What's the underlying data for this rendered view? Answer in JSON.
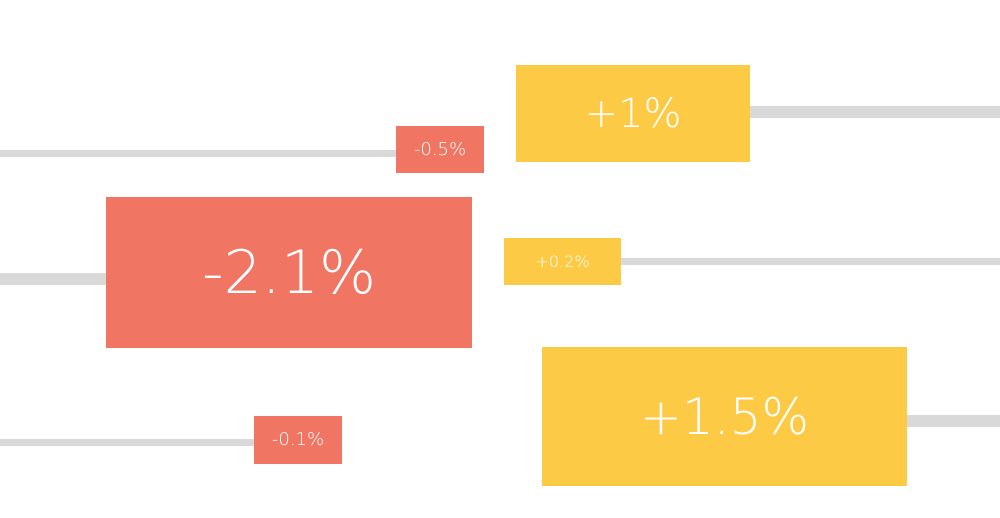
{
  "chart_data": {
    "type": "bar",
    "title": "",
    "xlabel": "",
    "ylabel": "",
    "colors": {
      "negative": "#f07563",
      "positive": "#fdca46",
      "track": "#d9d9d9"
    },
    "items": [
      {
        "label": "+1%",
        "value": 1.0,
        "sign": "positive"
      },
      {
        "label": "-0.5%",
        "value": -0.5,
        "sign": "negative"
      },
      {
        "label": "-2.1%",
        "value": -2.1,
        "sign": "negative"
      },
      {
        "label": "+0.2%",
        "value": 0.2,
        "sign": "positive"
      },
      {
        "label": "+1.5%",
        "value": 1.5,
        "sign": "positive"
      },
      {
        "label": "-0.1%",
        "value": -0.1,
        "sign": "negative"
      }
    ]
  }
}
